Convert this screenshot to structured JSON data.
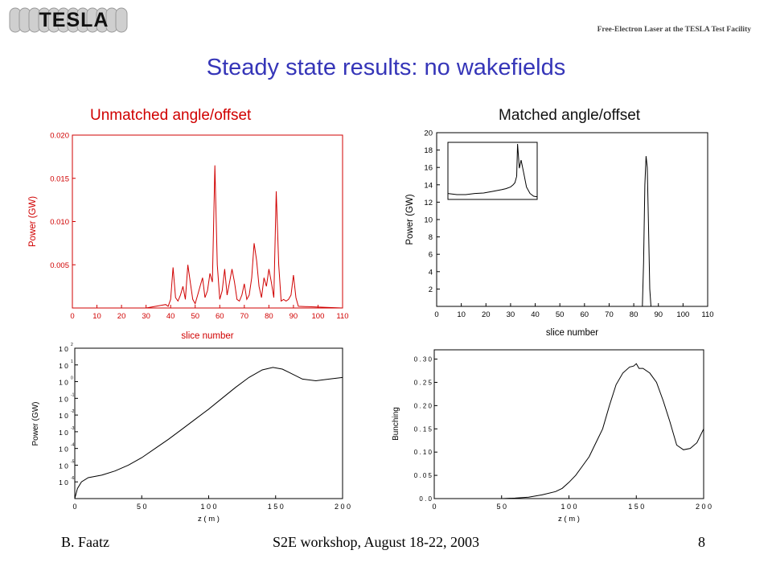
{
  "slide": {
    "logo_text": "TESLA",
    "facility_text": "Free-Electron Laser at the TESLA Test Facility",
    "title": "Steady state results: no wakefields",
    "subtitle_left": "Unmatched angle/offset",
    "subtitle_right": "Matched angle/offset",
    "footer_author": "B. Faatz",
    "footer_event": "S2E workshop, August 18-22, 2003",
    "footer_page": "8",
    "colors": {
      "title": "#3535b8",
      "unmatched": "#d00000",
      "axis": "#000000"
    }
  },
  "chart_data": [
    {
      "type": "line",
      "name": "unmatched-power",
      "xlabel": "slice number",
      "ylabel": "Power (GW)",
      "xlim": [
        0,
        110
      ],
      "ylim": [
        0,
        0.02
      ],
      "x_ticks": [
        0,
        10,
        20,
        30,
        40,
        50,
        60,
        70,
        80,
        90,
        100,
        110
      ],
      "y_ticks": [
        0.005,
        0.01,
        0.015,
        0.02
      ],
      "y_tick_labels": [
        "0.005",
        "0.010",
        "0.015",
        "0.020"
      ],
      "color": "#d00000",
      "x": [
        0,
        30,
        36,
        38,
        39,
        40,
        41,
        42,
        43,
        44,
        45,
        46,
        47,
        48,
        49,
        50,
        51,
        52,
        53,
        54,
        55,
        56,
        57,
        58,
        59,
        60,
        61,
        62,
        63,
        64,
        65,
        66,
        67,
        68,
        69,
        70,
        71,
        72,
        73,
        74,
        75,
        76,
        77,
        78,
        79,
        80,
        81,
        82,
        83,
        84,
        85,
        86,
        87,
        88,
        89,
        90,
        91,
        92,
        110
      ],
      "y": [
        0,
        0,
        0.0003,
        0.0004,
        0.0002,
        0.001,
        0.0047,
        0.0012,
        0.0008,
        0.0015,
        0.0025,
        0.001,
        0.005,
        0.003,
        0.001,
        0.0005,
        0.0015,
        0.0025,
        0.0035,
        0.0012,
        0.002,
        0.004,
        0.003,
        0.0165,
        0.005,
        0.001,
        0.002,
        0.0045,
        0.0015,
        0.003,
        0.0045,
        0.003,
        0.001,
        0.0008,
        0.0015,
        0.0028,
        0.001,
        0.0015,
        0.0035,
        0.0075,
        0.0055,
        0.0025,
        0.0012,
        0.0035,
        0.0025,
        0.0045,
        0.003,
        0.0012,
        0.0135,
        0.005,
        0.0008,
        0.001,
        0.0008,
        0.001,
        0.0015,
        0.0038,
        0.0012,
        0.0002,
        0
      ]
    },
    {
      "type": "line",
      "name": "matched-power",
      "xlabel": "slice number",
      "ylabel": "Power (GW)",
      "xlim": [
        0,
        110
      ],
      "ylim": [
        0,
        20
      ],
      "x_ticks": [
        0,
        10,
        20,
        30,
        40,
        50,
        60,
        70,
        80,
        90,
        100,
        110
      ],
      "y_ticks": [
        2,
        4,
        6,
        8,
        10,
        12,
        14,
        16,
        18,
        20
      ],
      "color": "#000000",
      "x": [
        0,
        83.5,
        84,
        84.5,
        85,
        85.5,
        86,
        86.5,
        87,
        110
      ],
      "y": [
        0,
        0,
        5,
        14,
        17.3,
        16,
        9,
        2,
        0,
        0
      ],
      "inset": {
        "x": [
          0,
          10,
          20,
          30,
          40,
          50,
          60,
          65,
          70,
          73,
          75,
          77,
          78,
          80,
          82,
          85,
          88,
          92,
          96,
          100
        ],
        "y": [
          0.08,
          0.06,
          0.06,
          0.08,
          0.09,
          0.12,
          0.15,
          0.17,
          0.2,
          0.24,
          0.28,
          0.4,
          1.0,
          0.55,
          0.7,
          0.45,
          0.2,
          0.08,
          0.03,
          0.02
        ]
      }
    },
    {
      "type": "line",
      "name": "power-vs-z",
      "xlabel": "z (m)",
      "ylabel": "Power (GW)",
      "xlim": [
        0,
        200
      ],
      "y_scale": "log",
      "ylim_exp": [
        -7,
        2
      ],
      "x_ticks": [
        0,
        50,
        100,
        150,
        200
      ],
      "y_tick_exponents": [
        -6,
        -5,
        -4,
        -3,
        -2,
        -1,
        0,
        1,
        2
      ],
      "color": "#000000",
      "x": [
        0,
        2,
        5,
        10,
        20,
        30,
        40,
        50,
        60,
        70,
        80,
        90,
        100,
        110,
        120,
        130,
        140,
        148,
        155,
        160,
        170,
        180,
        190,
        200
      ],
      "y_log10": [
        -7,
        -6.4,
        -6.0,
        -5.75,
        -5.6,
        -5.35,
        -5.0,
        -4.55,
        -4.0,
        -3.45,
        -2.85,
        -2.25,
        -1.65,
        -1.0,
        -0.35,
        0.25,
        0.7,
        0.85,
        0.75,
        0.55,
        0.15,
        0.05,
        0.15,
        0.25
      ]
    },
    {
      "type": "line",
      "name": "bunching-vs-z",
      "xlabel": "z (m)",
      "ylabel": "Bunching",
      "xlim": [
        0,
        200
      ],
      "ylim": [
        0,
        0.32
      ],
      "x_ticks": [
        0,
        50,
        100,
        150,
        200
      ],
      "y_ticks": [
        0.0,
        0.05,
        0.1,
        0.15,
        0.2,
        0.25,
        0.3
      ],
      "y_tick_labels": [
        "0.0",
        "0.05",
        "0.10",
        "0.15",
        "0.20",
        "0.25",
        "0.30"
      ],
      "color": "#000000",
      "x": [
        0,
        50,
        60,
        70,
        80,
        90,
        95,
        100,
        105,
        110,
        115,
        120,
        125,
        130,
        135,
        140,
        145,
        148,
        150,
        152,
        155,
        160,
        165,
        170,
        175,
        180,
        185,
        190,
        195,
        200
      ],
      "y": [
        0.0,
        0.0,
        0.001,
        0.003,
        0.008,
        0.015,
        0.022,
        0.035,
        0.05,
        0.07,
        0.09,
        0.12,
        0.15,
        0.2,
        0.245,
        0.27,
        0.283,
        0.285,
        0.29,
        0.28,
        0.28,
        0.27,
        0.25,
        0.21,
        0.165,
        0.115,
        0.105,
        0.108,
        0.12,
        0.15
      ]
    }
  ]
}
